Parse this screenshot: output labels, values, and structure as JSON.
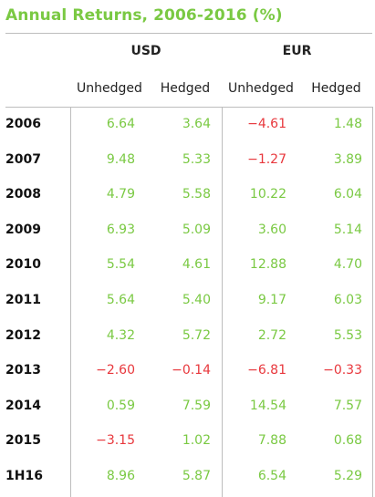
{
  "chart_data": {
    "type": "table",
    "title": "Annual Returns, 2006-2016 (%)",
    "groups": [
      "USD",
      "EUR"
    ],
    "columns": [
      "Unhedged",
      "Hedged",
      "Unhedged",
      "Hedged"
    ],
    "rows": [
      {
        "label": "2006",
        "values": [
          "6.64",
          "3.64",
          "−4.61",
          "1.48"
        ]
      },
      {
        "label": "2007",
        "values": [
          "9.48",
          "5.33",
          "−1.27",
          "3.89"
        ]
      },
      {
        "label": "2008",
        "values": [
          "4.79",
          "5.58",
          "10.22",
          "6.04"
        ]
      },
      {
        "label": "2009",
        "values": [
          "6.93",
          "5.09",
          "3.60",
          "5.14"
        ]
      },
      {
        "label": "2010",
        "values": [
          "5.54",
          "4.61",
          "12.88",
          "4.70"
        ]
      },
      {
        "label": "2011",
        "values": [
          "5.64",
          "5.40",
          "9.17",
          "6.03"
        ]
      },
      {
        "label": "2012",
        "values": [
          "4.32",
          "5.72",
          "2.72",
          "5.53"
        ]
      },
      {
        "label": "2013",
        "values": [
          "−2.60",
          "−0.14",
          "−6.81",
          "−0.33"
        ]
      },
      {
        "label": "2014",
        "values": [
          "0.59",
          "7.59",
          "14.54",
          "7.57"
        ]
      },
      {
        "label": "2015",
        "values": [
          "−3.15",
          "1.02",
          "7.88",
          "0.68"
        ]
      },
      {
        "label": "1H16",
        "values": [
          "8.96",
          "5.87",
          "6.54",
          "5.29"
        ]
      }
    ],
    "colors": {
      "title": "#7ac943",
      "positive": "#7ac943",
      "negative": "#e8383d"
    }
  }
}
